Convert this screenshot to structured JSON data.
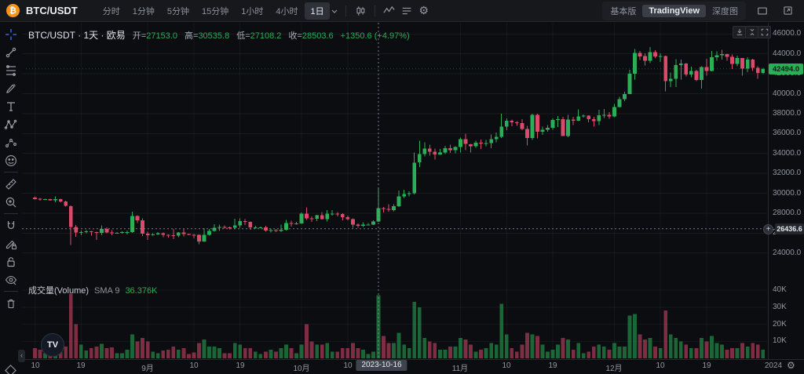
{
  "header": {
    "symbol": "BTC/USDT",
    "logo_glyph": "₿",
    "timeframes": [
      "分时",
      "1分钟",
      "5分钟",
      "15分钟",
      "1小时",
      "4小时",
      "1日"
    ],
    "selected_timeframe": "1日",
    "icons": [
      "candle-style",
      "indicators",
      "template-list",
      "settings-gear"
    ],
    "right_tabs": [
      "基本版",
      "TradingView",
      "深度图"
    ],
    "selected_right_tab": "TradingView",
    "window_icons": [
      "popup-window",
      "fullscreen"
    ]
  },
  "legend": {
    "title": "BTC/USDT · 1天 · 欧易",
    "open_label": "开=",
    "open": "27153.0",
    "high_label": "高=",
    "high": "30535.8",
    "low_label": "低=",
    "low": "27108.2",
    "close_label": "收=",
    "close": "28503.6",
    "change": "+1350.6 (+4.97%)"
  },
  "volume_legend": {
    "title": "成交量(Volume)",
    "ma_label": "SMA 9",
    "value": "36.376K"
  },
  "chart_buttons": [
    "download",
    "collapse-pane",
    "maximize"
  ],
  "toolbar": {
    "left": [
      "crosshair",
      "trend-line",
      "fib-retracement",
      "brush",
      "text",
      "xabcd-pattern",
      "forecast",
      "emoji",
      "divider",
      "ruler",
      "zoom-in",
      "divider",
      "magnet",
      "drawing-mode-lock",
      "lock-all",
      "hide-all",
      "divider",
      "remove-all"
    ],
    "bottom_icon": "object-tree",
    "collapse_glyph": "‹"
  },
  "price_axis": {
    "levels": [
      46000,
      44000,
      42000,
      40000,
      38000,
      36000,
      34000,
      32000,
      30000,
      28000,
      26000,
      24000
    ],
    "labels": [
      "46000.0",
      "44000.0",
      "42000.0",
      "40000.0",
      "38000.0",
      "36000.0",
      "34000.0",
      "32000.0",
      "30000.0",
      "28000.0",
      "26000.0",
      "24000.0"
    ],
    "last_price": 42494.0,
    "last_price_label": "42494.0",
    "crosshair_price": 26436.6,
    "crosshair_price_label": "26436.6",
    "plus_glyph": "+"
  },
  "volume_axis": [
    {
      "label": "40K",
      "value": 40
    },
    {
      "label": "30K",
      "value": 30
    },
    {
      "label": "20K",
      "value": 20
    },
    {
      "label": "10K",
      "value": 10
    }
  ],
  "time_axis": {
    "ticks": [
      {
        "label": "10",
        "date": "2023-08-10"
      },
      {
        "label": "19",
        "date": "2023-08-19"
      },
      {
        "label": "9月",
        "date": "2023-09-01"
      },
      {
        "label": "10",
        "date": "2023-09-10"
      },
      {
        "label": "19",
        "date": "2023-09-19"
      },
      {
        "label": "10月",
        "date": "2023-10-01"
      },
      {
        "label": "10",
        "date": "2023-10-10"
      },
      {
        "label": "11月",
        "date": "2023-11-01"
      },
      {
        "label": "10",
        "date": "2023-11-10"
      },
      {
        "label": "19",
        "date": "2023-11-19"
      },
      {
        "label": "12月",
        "date": "2023-12-01"
      },
      {
        "label": "10",
        "date": "2023-12-10"
      },
      {
        "label": "19",
        "date": "2023-12-19"
      },
      {
        "label": "2024",
        "date": "2024-01-01"
      }
    ],
    "crosshair_date": "2023-10-16",
    "settings_glyph": "⚙",
    "tv_logo_text": "TV"
  },
  "colors": {
    "up": "#2aae58",
    "down": "#db4a6b",
    "crosshair": "#8a90a0",
    "accent_blue": "#4472f5",
    "badge_up_bg": "#2aae58",
    "grid": "rgba(255,255,255,0.055)"
  },
  "chart_data": {
    "type": "candlestick",
    "symbol": "BTC/USDT",
    "interval": "1天",
    "exchange": "欧易",
    "visible_price_range": [
      24000,
      46000
    ],
    "volume_axis_k": [
      10,
      20,
      30,
      40
    ],
    "legend_candle": {
      "date": "2023-10-16",
      "open": 27153.0,
      "high": 30535.8,
      "low": 27108.2,
      "close": 28503.6,
      "change": 1350.6,
      "change_pct": 4.97
    },
    "columns": [
      "date",
      "open",
      "high",
      "low",
      "close",
      "volume_k"
    ],
    "candles": [
      [
        "2023-08-10",
        29560,
        29700,
        29380,
        29430,
        6
      ],
      [
        "2023-08-11",
        29430,
        29540,
        29250,
        29400,
        5
      ],
      [
        "2023-08-12",
        29400,
        29450,
        29340,
        29410,
        3
      ],
      [
        "2023-08-13",
        29410,
        29460,
        29260,
        29300,
        3.5
      ],
      [
        "2023-08-14",
        29300,
        29680,
        29080,
        29400,
        6
      ],
      [
        "2023-08-15",
        29400,
        29450,
        29080,
        29170,
        5
      ],
      [
        "2023-08-16",
        29170,
        29240,
        28680,
        28720,
        7
      ],
      [
        "2023-08-17",
        28720,
        28760,
        24800,
        26620,
        38
      ],
      [
        "2023-08-18",
        26620,
        26820,
        25630,
        26050,
        20
      ],
      [
        "2023-08-19",
        26050,
        26270,
        25790,
        26100,
        8
      ],
      [
        "2023-08-20",
        26100,
        26300,
        25990,
        26190,
        4.5
      ],
      [
        "2023-08-21",
        26190,
        26240,
        25740,
        26120,
        6
      ],
      [
        "2023-08-22",
        26120,
        26140,
        25330,
        26040,
        7
      ],
      [
        "2023-08-23",
        26040,
        26790,
        25800,
        26430,
        8.5
      ],
      [
        "2023-08-24",
        26430,
        26560,
        26000,
        26050,
        6
      ],
      [
        "2023-08-25",
        26050,
        26310,
        25770,
        26010,
        6.5
      ],
      [
        "2023-08-26",
        26010,
        26110,
        25950,
        26010,
        3
      ],
      [
        "2023-08-27",
        26010,
        26200,
        25960,
        26100,
        3
      ],
      [
        "2023-08-28",
        26100,
        26250,
        25870,
        26120,
        5
      ],
      [
        "2023-08-29",
        26120,
        28140,
        26030,
        27720,
        14
      ],
      [
        "2023-08-30",
        27720,
        27810,
        27020,
        27300,
        10
      ],
      [
        "2023-08-31",
        27300,
        27490,
        25690,
        25930,
        12
      ],
      [
        "2023-09-01",
        25930,
        26130,
        25320,
        25800,
        10
      ],
      [
        "2023-09-02",
        25800,
        25990,
        25740,
        25870,
        4
      ],
      [
        "2023-09-03",
        25870,
        26090,
        25810,
        25970,
        3
      ],
      [
        "2023-09-04",
        25970,
        26070,
        25580,
        25820,
        4.5
      ],
      [
        "2023-09-05",
        25820,
        25870,
        25550,
        25780,
        5
      ],
      [
        "2023-09-06",
        25780,
        26410,
        25380,
        25750,
        7
      ],
      [
        "2023-09-07",
        25750,
        26110,
        25600,
        26050,
        5
      ],
      [
        "2023-09-08",
        26050,
        26430,
        25670,
        25900,
        6
      ],
      [
        "2023-09-09",
        25900,
        25940,
        25780,
        25840,
        2.5
      ],
      [
        "2023-09-10",
        25840,
        25900,
        25480,
        25830,
        3.5
      ],
      [
        "2023-09-11",
        25830,
        25870,
        24900,
        25160,
        9
      ],
      [
        "2023-09-12",
        25160,
        26510,
        25120,
        25840,
        11
      ],
      [
        "2023-09-13",
        25840,
        26410,
        25750,
        26220,
        7
      ],
      [
        "2023-09-14",
        26220,
        26880,
        26160,
        26520,
        7
      ],
      [
        "2023-09-15",
        26520,
        26860,
        26220,
        26600,
        6
      ],
      [
        "2023-09-16",
        26600,
        26780,
        26440,
        26570,
        3
      ],
      [
        "2023-09-17",
        26570,
        26650,
        26390,
        26530,
        3
      ],
      [
        "2023-09-18",
        26530,
        27440,
        26380,
        26760,
        9
      ],
      [
        "2023-09-19",
        26760,
        27490,
        26540,
        27210,
        8
      ],
      [
        "2023-09-20",
        27210,
        27400,
        26820,
        27120,
        6
      ],
      [
        "2023-09-21",
        27120,
        27160,
        26340,
        26570,
        6
      ],
      [
        "2023-09-22",
        26570,
        26750,
        26440,
        26570,
        4
      ],
      [
        "2023-09-23",
        26570,
        26660,
        26490,
        26580,
        2.5
      ],
      [
        "2023-09-24",
        26580,
        26730,
        26160,
        26250,
        4
      ],
      [
        "2023-09-25",
        26250,
        26440,
        26080,
        26300,
        5
      ],
      [
        "2023-09-26",
        26300,
        26400,
        26090,
        26220,
        4
      ],
      [
        "2023-09-27",
        26220,
        26850,
        26100,
        26350,
        6
      ],
      [
        "2023-09-28",
        26350,
        27310,
        26260,
        27020,
        8
      ],
      [
        "2023-09-29",
        27020,
        27240,
        26650,
        26910,
        6
      ],
      [
        "2023-09-30",
        26910,
        27110,
        26840,
        26960,
        3
      ],
      [
        "2023-10-01",
        26960,
        28060,
        26930,
        27970,
        8
      ],
      [
        "2023-10-02",
        27970,
        28580,
        27330,
        27500,
        20
      ],
      [
        "2023-10-03",
        27500,
        27680,
        27140,
        27430,
        10
      ],
      [
        "2023-10-04",
        27430,
        27840,
        27190,
        27780,
        8
      ],
      [
        "2023-10-05",
        27780,
        28110,
        27370,
        27410,
        8
      ],
      [
        "2023-10-06",
        27410,
        28310,
        27180,
        27950,
        9
      ],
      [
        "2023-10-07",
        27950,
        28290,
        27760,
        27970,
        4
      ],
      [
        "2023-10-08",
        27970,
        28110,
        27670,
        27920,
        4
      ],
      [
        "2023-10-09",
        27920,
        28000,
        27280,
        27590,
        6
      ],
      [
        "2023-10-10",
        27590,
        27740,
        27280,
        27390,
        6
      ],
      [
        "2023-10-11",
        27390,
        27490,
        26530,
        26850,
        9
      ],
      [
        "2023-10-12",
        26850,
        26950,
        26540,
        26750,
        6
      ],
      [
        "2023-10-13",
        26750,
        27100,
        26620,
        26860,
        5
      ],
      [
        "2023-10-14",
        26860,
        27010,
        26790,
        26860,
        2.5
      ],
      [
        "2023-10-15",
        26860,
        27290,
        26810,
        27153,
        4
      ],
      [
        "2023-10-16",
        27153,
        30535.8,
        27108.2,
        28503.6,
        37
      ],
      [
        "2023-10-17",
        28503,
        28610,
        28070,
        28410,
        13
      ],
      [
        "2023-10-18",
        28410,
        28910,
        28150,
        28330,
        9
      ],
      [
        "2023-10-19",
        28330,
        28900,
        28200,
        28720,
        9
      ],
      [
        "2023-10-20",
        28720,
        30260,
        28610,
        29680,
        15
      ],
      [
        "2023-10-21",
        29680,
        30340,
        29520,
        29920,
        8
      ],
      [
        "2023-10-22",
        29920,
        30210,
        29690,
        29990,
        6
      ],
      [
        "2023-10-23",
        29990,
        34110,
        29890,
        33090,
        33
      ],
      [
        "2023-10-24",
        33090,
        35290,
        32640,
        33920,
        30
      ],
      [
        "2023-10-25",
        33920,
        35110,
        33710,
        34500,
        12
      ],
      [
        "2023-10-26",
        34500,
        34890,
        33770,
        34160,
        10
      ],
      [
        "2023-10-27",
        34160,
        34470,
        33400,
        33910,
        9
      ],
      [
        "2023-10-28",
        33910,
        34450,
        33850,
        34090,
        5
      ],
      [
        "2023-10-29",
        34090,
        34760,
        33920,
        34530,
        5
      ],
      [
        "2023-10-30",
        34530,
        34870,
        34050,
        34340,
        7
      ],
      [
        "2023-10-31",
        34340,
        34730,
        34020,
        34650,
        7
      ],
      [
        "2023-11-01",
        34650,
        35610,
        34090,
        35430,
        12
      ],
      [
        "2023-11-02",
        35430,
        36000,
        34320,
        34940,
        11
      ],
      [
        "2023-11-03",
        34940,
        34960,
        34100,
        34730,
        8
      ],
      [
        "2023-11-04",
        34730,
        35290,
        34550,
        35070,
        4
      ],
      [
        "2023-11-05",
        35070,
        35410,
        34430,
        35020,
        5
      ],
      [
        "2023-11-06",
        35020,
        35350,
        34730,
        35050,
        6
      ],
      [
        "2023-11-07",
        35050,
        35910,
        34510,
        35430,
        9
      ],
      [
        "2023-11-08",
        35430,
        36120,
        35120,
        35650,
        8
      ],
      [
        "2023-11-09",
        35650,
        37990,
        35570,
        36700,
        32
      ],
      [
        "2023-11-10",
        36700,
        37510,
        36320,
        37300,
        14
      ],
      [
        "2023-11-11",
        37300,
        37420,
        36720,
        37130,
        6
      ],
      [
        "2023-11-12",
        37130,
        37240,
        36770,
        37060,
        4
      ],
      [
        "2023-11-13",
        37060,
        37440,
        36330,
        36460,
        8
      ],
      [
        "2023-11-14",
        36460,
        36760,
        34790,
        35550,
        15
      ],
      [
        "2023-11-15",
        35550,
        37980,
        35350,
        37880,
        14
      ],
      [
        "2023-11-16",
        37880,
        37990,
        35530,
        36160,
        13
      ],
      [
        "2023-11-17",
        36160,
        36710,
        35850,
        36390,
        8
      ],
      [
        "2023-11-18",
        36390,
        36860,
        36190,
        36570,
        4
      ],
      [
        "2023-11-19",
        36570,
        37510,
        36360,
        37360,
        5
      ],
      [
        "2023-11-20",
        37360,
        37770,
        36670,
        37450,
        8
      ],
      [
        "2023-11-21",
        37450,
        37660,
        35730,
        35750,
        12
      ],
      [
        "2023-11-22",
        35750,
        37870,
        35620,
        37410,
        11
      ],
      [
        "2023-11-23",
        37410,
        37660,
        36860,
        37290,
        5
      ],
      [
        "2023-11-24",
        37290,
        38430,
        37240,
        37720,
        9
      ],
      [
        "2023-11-25",
        37720,
        37900,
        37580,
        37780,
        3
      ],
      [
        "2023-11-26",
        37780,
        37830,
        37140,
        37440,
        4
      ],
      [
        "2023-11-27",
        37440,
        37690,
        36700,
        37240,
        7
      ],
      [
        "2023-11-28",
        37240,
        38380,
        36860,
        37820,
        8
      ],
      [
        "2023-11-29",
        37820,
        38450,
        37560,
        37860,
        7
      ],
      [
        "2023-11-30",
        37860,
        38160,
        37490,
        37710,
        5
      ],
      [
        "2023-12-01",
        37710,
        38960,
        37620,
        38680,
        9
      ],
      [
        "2023-12-02",
        38680,
        39700,
        38640,
        39450,
        7
      ],
      [
        "2023-12-03",
        39450,
        40200,
        39270,
        39970,
        7
      ],
      [
        "2023-12-04",
        39970,
        42420,
        39960,
        41990,
        25
      ],
      [
        "2023-12-05",
        41990,
        44480,
        41420,
        44080,
        26
      ],
      [
        "2023-12-06",
        44080,
        44300,
        43400,
        43760,
        14
      ],
      [
        "2023-12-07",
        43760,
        44050,
        42820,
        43290,
        11
      ],
      [
        "2023-12-08",
        43290,
        44700,
        43090,
        44170,
        12
      ],
      [
        "2023-12-09",
        44170,
        44360,
        43580,
        43720,
        7
      ],
      [
        "2023-12-10",
        43720,
        44050,
        43180,
        43790,
        6
      ],
      [
        "2023-12-11",
        43790,
        43810,
        40220,
        41250,
        28
      ],
      [
        "2023-12-12",
        41250,
        42120,
        40660,
        41490,
        14
      ],
      [
        "2023-12-13",
        41490,
        43470,
        40680,
        42870,
        12
      ],
      [
        "2023-12-14",
        42870,
        43420,
        41410,
        43020,
        10
      ],
      [
        "2023-12-15",
        43020,
        43080,
        41720,
        41940,
        8
      ],
      [
        "2023-12-16",
        41940,
        42700,
        41640,
        42280,
        6
      ],
      [
        "2023-12-17",
        42280,
        42420,
        41260,
        41370,
        6
      ],
      [
        "2023-12-18",
        41370,
        42740,
        40530,
        42660,
        12
      ],
      [
        "2023-12-19",
        42660,
        43500,
        41810,
        42280,
        10
      ],
      [
        "2023-12-20",
        42280,
        44280,
        42240,
        43670,
        13
      ],
      [
        "2023-12-21",
        43670,
        44240,
        43300,
        43870,
        9
      ],
      [
        "2023-12-22",
        43870,
        44400,
        43440,
        43970,
        8
      ],
      [
        "2023-12-23",
        43970,
        44000,
        43290,
        43700,
        5
      ],
      [
        "2023-12-24",
        43700,
        43940,
        42500,
        42990,
        6
      ],
      [
        "2023-12-25",
        42990,
        43800,
        42750,
        43580,
        6
      ],
      [
        "2023-12-26",
        43580,
        43600,
        41800,
        42520,
        9
      ],
      [
        "2023-12-27",
        42520,
        43680,
        42160,
        43440,
        7
      ],
      [
        "2023-12-28",
        43440,
        43500,
        42280,
        42600,
        9
      ],
      [
        "2023-12-29",
        42600,
        42750,
        41500,
        42080,
        8
      ],
      [
        "2023-12-30",
        42080,
        42580,
        41960,
        42494,
        5
      ]
    ]
  }
}
